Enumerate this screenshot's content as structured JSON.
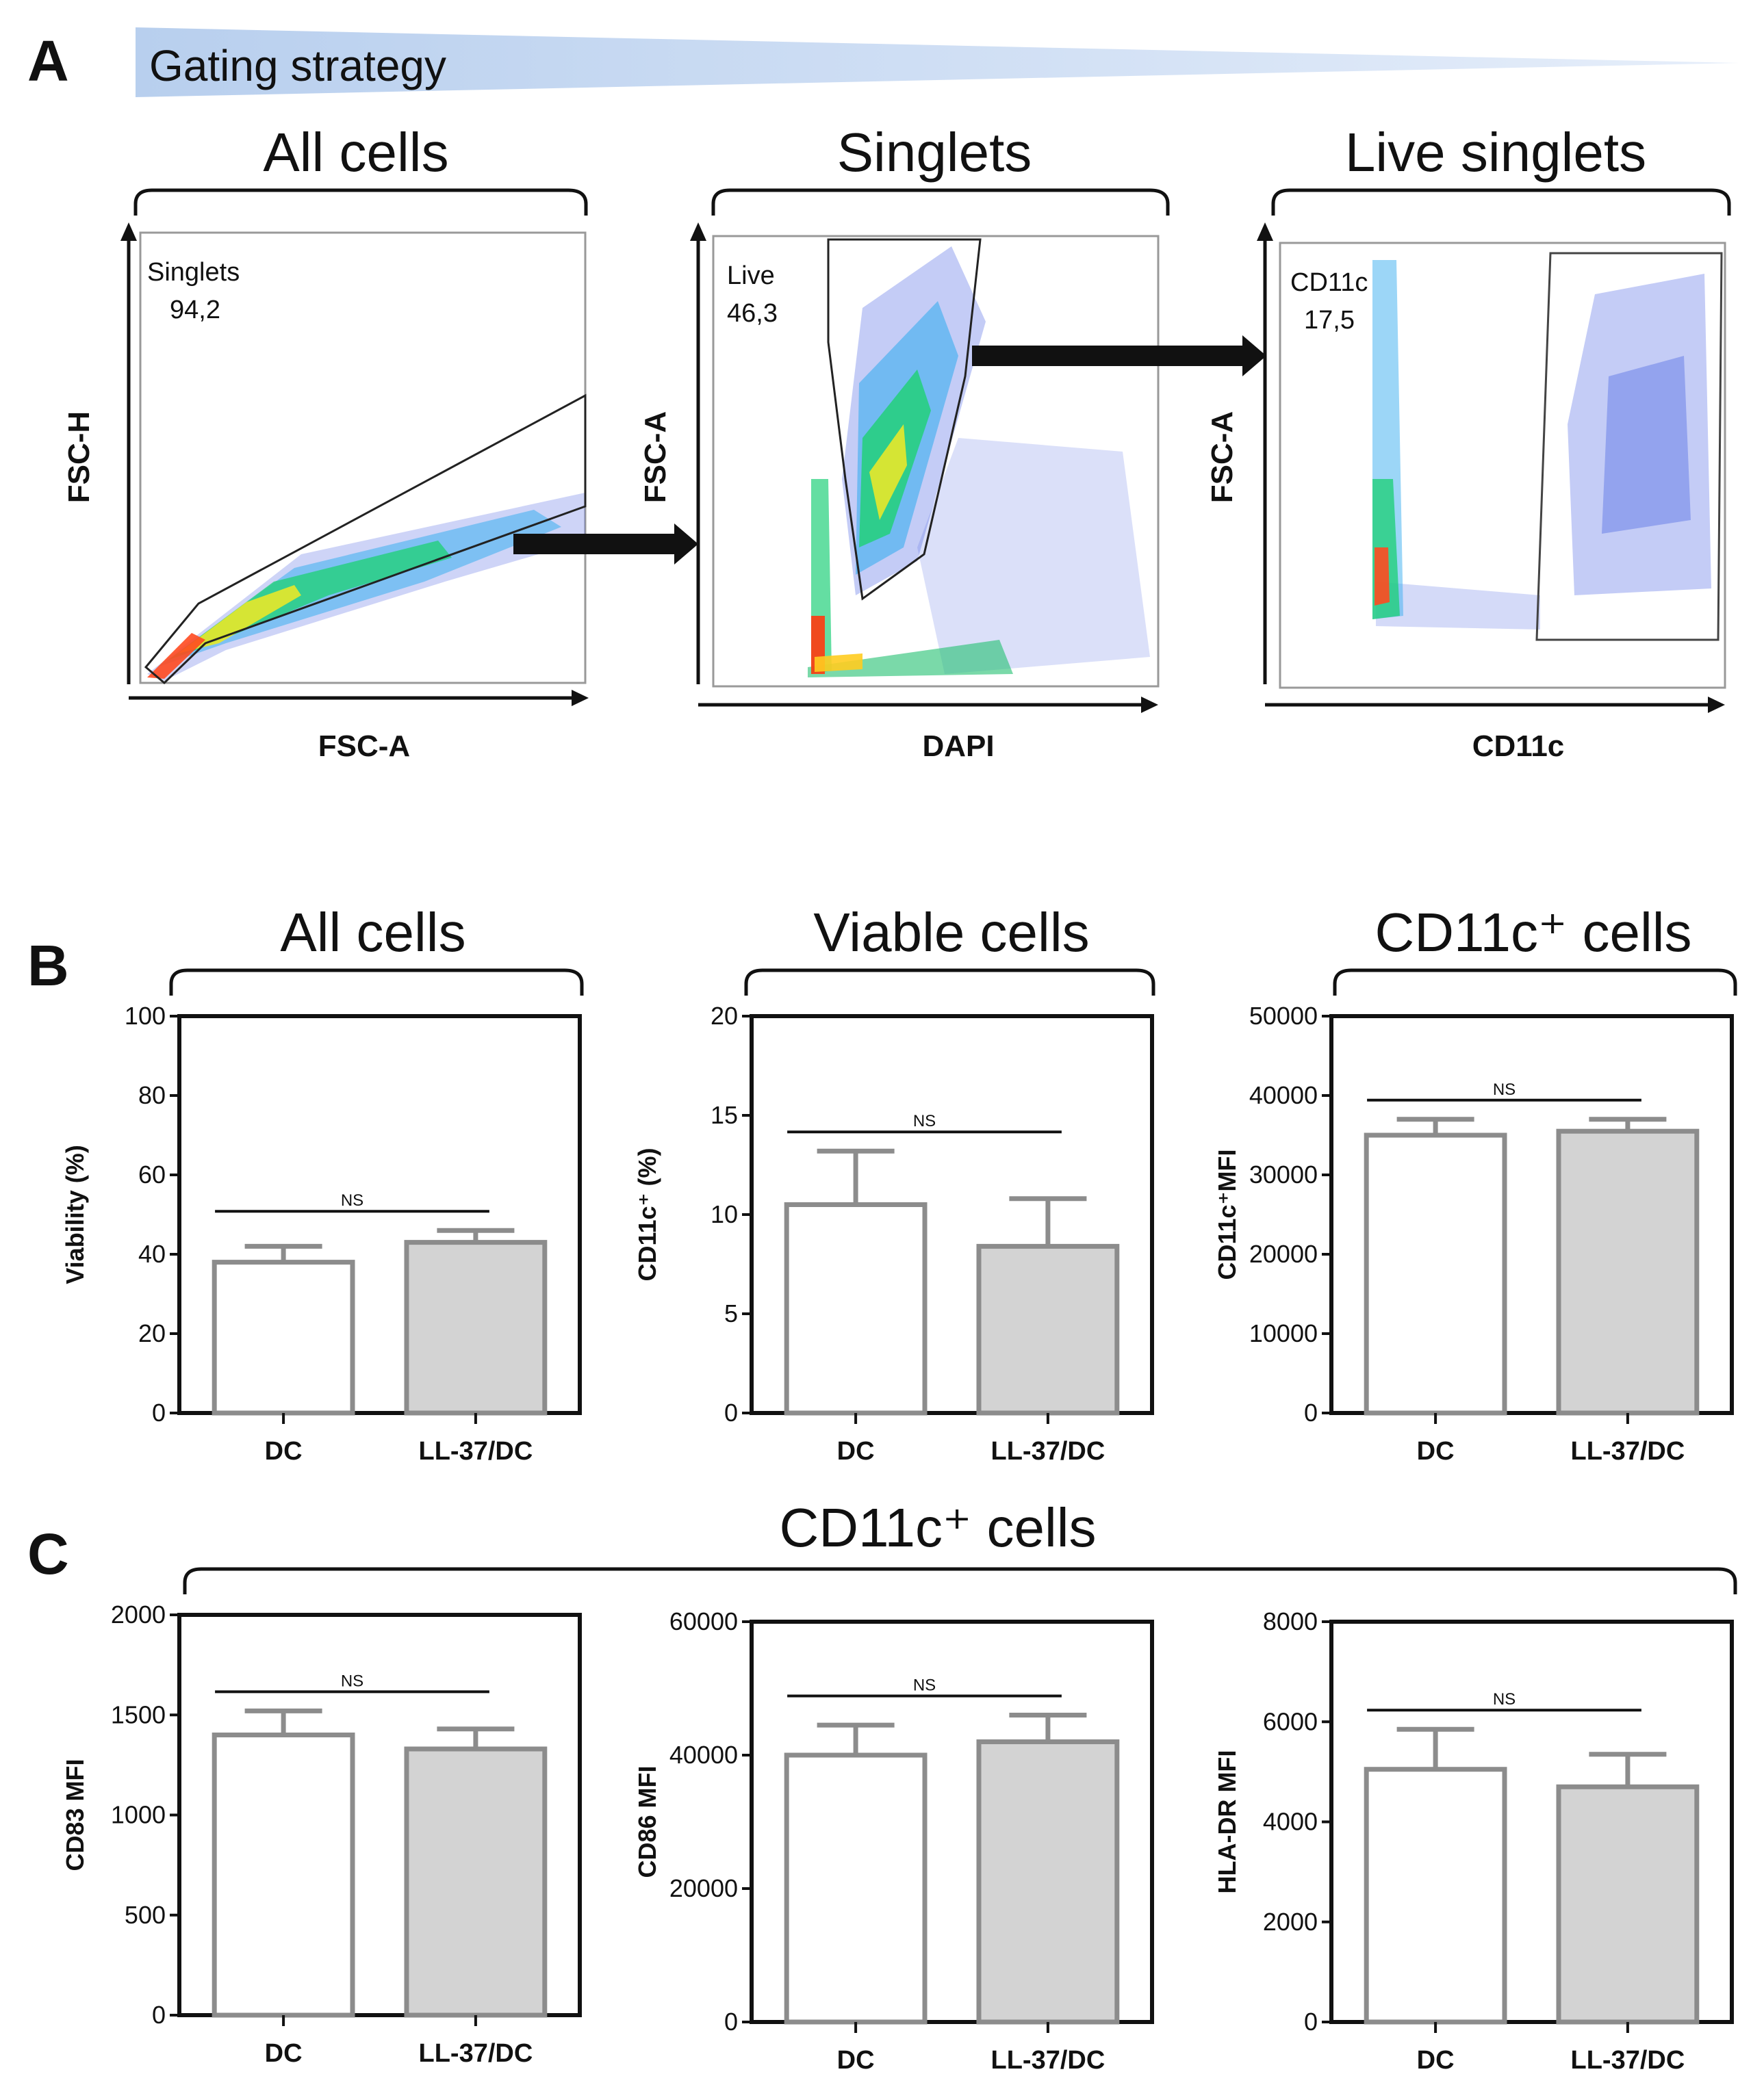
{
  "panel_a": {
    "letter": "A",
    "banner": "Gating strategy",
    "plots": [
      {
        "id": "a1",
        "title": "All cells",
        "xlabel": "FSC-A",
        "ylabel": "FSC-H",
        "gate_name": "Singlets",
        "gate_value": "94,2"
      },
      {
        "id": "a2",
        "title": "Singlets",
        "xlabel": "DAPI",
        "ylabel": "FSC-A",
        "gate_name": "Live",
        "gate_value": "46,3"
      },
      {
        "id": "a3",
        "title": "Live singlets",
        "xlabel": "CD11c",
        "ylabel": "FSC-A",
        "gate_name": "CD11c",
        "gate_value": "17,5"
      }
    ]
  },
  "panel_b": {
    "letter": "B",
    "group_titles": [
      "All cells",
      "Viable cells",
      "CD11c⁺ cells"
    ]
  },
  "panel_c": {
    "letter": "C",
    "group_title": "CD11c⁺ cells"
  },
  "colors": {
    "dc_fill": "#ffffff",
    "ll37_fill": "#d3d3d3",
    "bar_stroke": "#8c8c8c",
    "banner": "#b8cfee"
  },
  "chart_data": [
    {
      "type": "bar",
      "id": "b1",
      "categories": [
        "DC",
        "LL-37/DC"
      ],
      "values": [
        38,
        43
      ],
      "errors": [
        4,
        3
      ],
      "ylabel": "Viability (%)",
      "ylim": [
        0,
        100
      ],
      "yticks": [
        "0",
        "20",
        "40",
        "60",
        "80",
        "100"
      ],
      "sig": "NS"
    },
    {
      "type": "bar",
      "id": "b2",
      "categories": [
        "DC",
        "LL-37/DC"
      ],
      "values": [
        10.5,
        8.4
      ],
      "errors": [
        2.7,
        2.4
      ],
      "ylabel": "CD11c⁺ (%)",
      "ylim": [
        0,
        20
      ],
      "yticks": [
        "0",
        "5",
        "10",
        "15",
        "20"
      ],
      "sig": "NS"
    },
    {
      "type": "bar",
      "id": "b3",
      "categories": [
        "DC",
        "LL-37/DC"
      ],
      "values": [
        35000,
        35500
      ],
      "errors": [
        2000,
        1500
      ],
      "ylabel": "CD11c⁺MFI",
      "ylim": [
        0,
        50000
      ],
      "yticks": [
        "0",
        "10000",
        "20000",
        "30000",
        "40000",
        "50000"
      ],
      "sig": "NS"
    },
    {
      "type": "bar",
      "id": "c1",
      "categories": [
        "DC",
        "LL-37/DC"
      ],
      "values": [
        1400,
        1330
      ],
      "errors": [
        120,
        100
      ],
      "ylabel": "CD83 MFI",
      "ylim": [
        0,
        2000
      ],
      "yticks": [
        "0",
        "500",
        "1000",
        "1500",
        "2000"
      ],
      "sig": "NS"
    },
    {
      "type": "bar",
      "id": "c2",
      "categories": [
        "DC",
        "LL-37/DC"
      ],
      "values": [
        40000,
        42000
      ],
      "errors": [
        4500,
        4000
      ],
      "ylabel": "CD86 MFI",
      "ylim": [
        0,
        60000
      ],
      "yticks": [
        "0",
        "20000",
        "40000",
        "60000"
      ],
      "sig": "NS"
    },
    {
      "type": "bar",
      "id": "c3",
      "categories": [
        "DC",
        "LL-37/DC"
      ],
      "values": [
        5050,
        4700
      ],
      "errors": [
        800,
        650
      ],
      "ylabel": "HLA-DR MFI",
      "ylim": [
        0,
        8000
      ],
      "yticks": [
        "0",
        "2000",
        "4000",
        "6000",
        "8000"
      ],
      "sig": "NS"
    }
  ]
}
